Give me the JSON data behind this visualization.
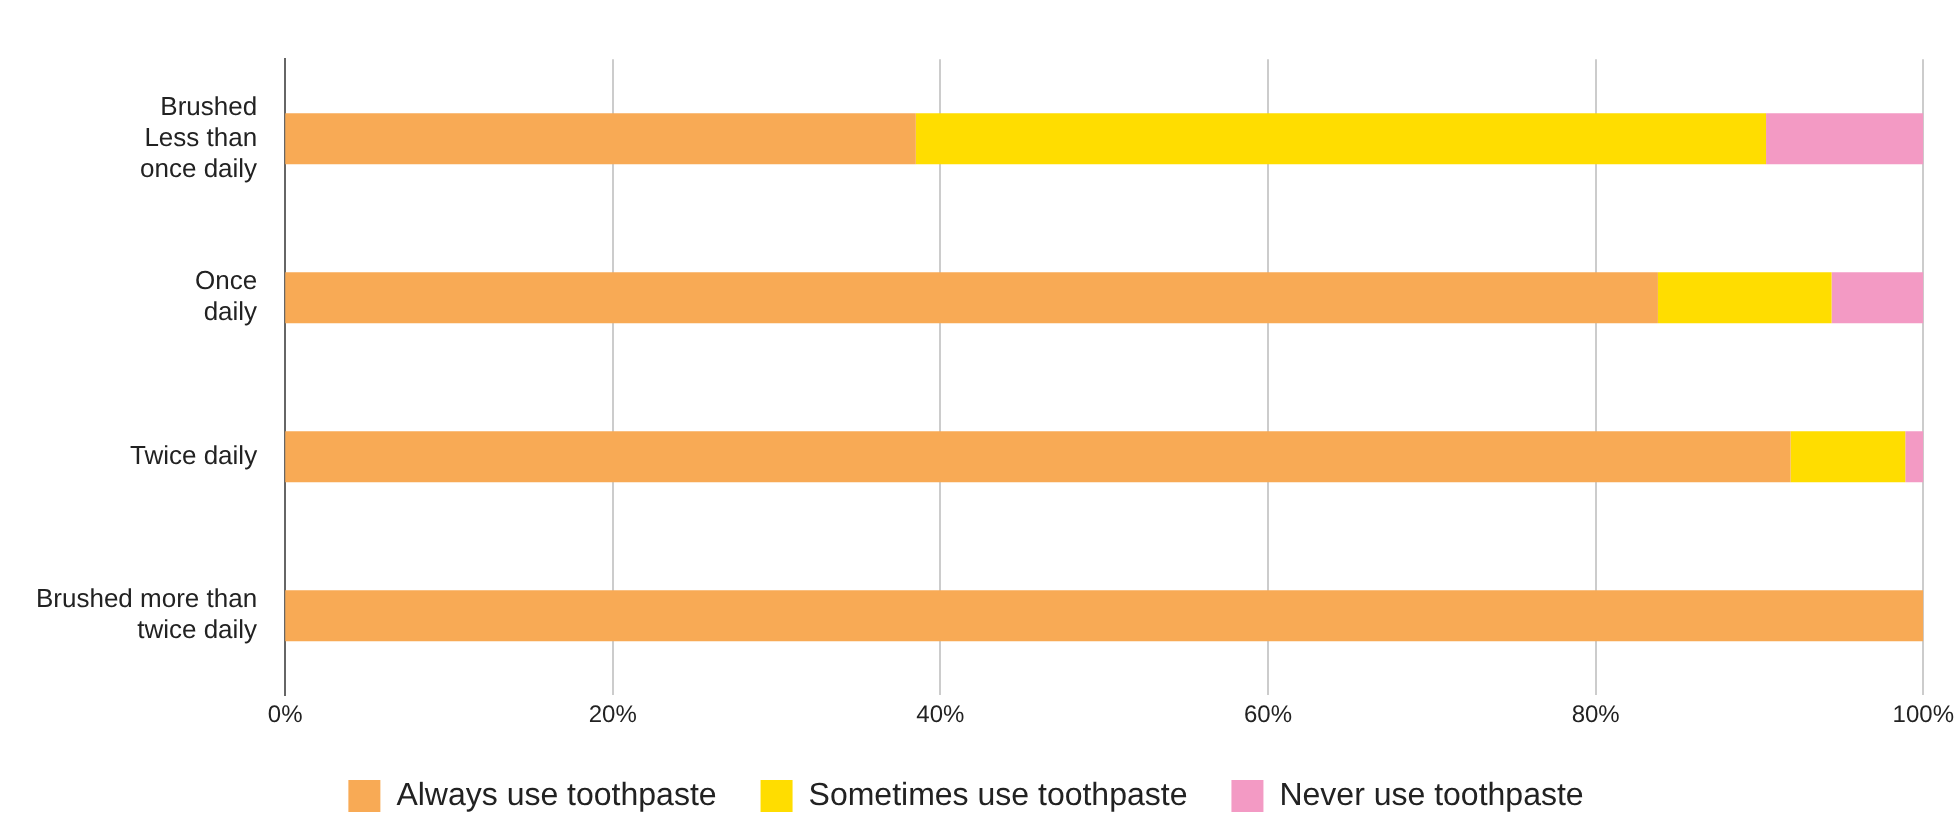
{
  "chart_data": {
    "type": "bar",
    "orientation": "horizontal",
    "stacked": true,
    "categories": [
      "Brushed\nLess than\nonce daily",
      "Once\ndaily",
      "Twice daily",
      "Brushed more than\ntwice daily"
    ],
    "series": [
      {
        "name": "Always use toothpaste",
        "color": "#f8aa55",
        "values": [
          38.5,
          83.8,
          91.9,
          100
        ]
      },
      {
        "name": "Sometimes use toothpaste",
        "color": "#ffdd00",
        "values": [
          51.9,
          10.6,
          7.0,
          0
        ]
      },
      {
        "name": "Never use toothpaste",
        "color": "#f39ac4",
        "values": [
          9.6,
          5.6,
          1.1,
          0
        ]
      }
    ],
    "xlim": [
      0,
      100
    ],
    "xticks": [
      {
        "value": 0,
        "label": "0%"
      },
      {
        "value": 20,
        "label": "20%"
      },
      {
        "value": 40,
        "label": "40%"
      },
      {
        "value": 60,
        "label": "60%"
      },
      {
        "value": 80,
        "label": "80%"
      },
      {
        "value": 100,
        "label": "100%"
      }
    ],
    "grid": "x",
    "legend": "bottom"
  }
}
